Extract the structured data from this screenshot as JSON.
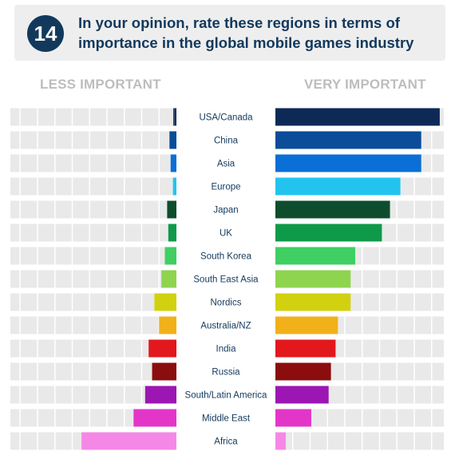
{
  "header": {
    "number": "14",
    "title": "In your opinion, rate these regions in terms of importance in the global mobile games industry"
  },
  "chart_data": {
    "type": "bar",
    "left_label": "LESS IMPORTANT",
    "right_label": "VERY IMPORTANT",
    "categories": [
      "USA/Canada",
      "China",
      "Asia",
      "Europe",
      "Japan",
      "UK",
      "South Korea",
      "South East Asia",
      "Nordics",
      "Australia/NZ",
      "India",
      "Russia",
      "South/Latin America",
      "Middle East",
      "Africa"
    ],
    "colors": [
      "#0d2a57",
      "#0b4d99",
      "#0a6fd6",
      "#23c3f0",
      "#0d4d2d",
      "#0e9a48",
      "#3fcf62",
      "#8ed44e",
      "#d2d10f",
      "#f2b019",
      "#e2181d",
      "#8b0d0d",
      "#9c16b3",
      "#e336c9",
      "#f588e6"
    ],
    "series": [
      {
        "name": "LESS IMPORTANT",
        "values": [
          0.5,
          3,
          2.5,
          1.5,
          4,
          3.5,
          5,
          6.5,
          9.5,
          7.5,
          12,
          10.5,
          13.5,
          18.5,
          41
        ]
      },
      {
        "name": "VERY IMPORTANT",
        "values": [
          71,
          63,
          63,
          54,
          49.5,
          46,
          34.5,
          32.5,
          32.5,
          27,
          26,
          24,
          23,
          15.5,
          4.5
        ]
      }
    ],
    "xlim": [
      0,
      72
    ],
    "grid": true
  }
}
